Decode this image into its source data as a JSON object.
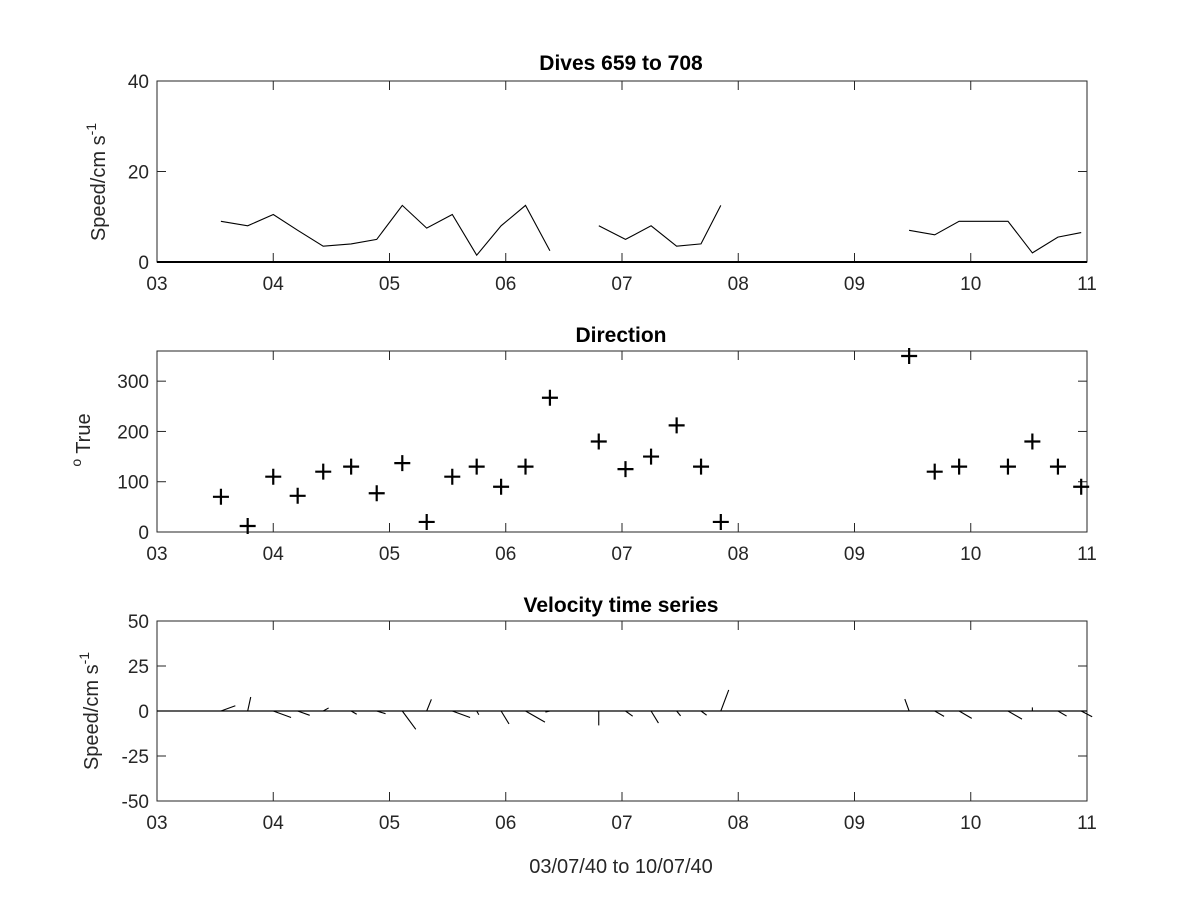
{
  "colors": {
    "ink": "#000000",
    "axis": "#262626",
    "background": "#ffffff"
  },
  "chart_data": [
    {
      "type": "line",
      "title": "Dives 659 to 708",
      "ylabel": {
        "main": "Speed/cm s",
        "sup": "-1"
      },
      "xlabel": "",
      "xlim": [
        3,
        11
      ],
      "ylim": [
        0,
        40
      ],
      "x_tick_values": [
        3,
        4,
        5,
        6,
        7,
        8,
        9,
        10,
        11
      ],
      "x_tick_labels": [
        "03",
        "04",
        "05",
        "06",
        "07",
        "08",
        "09",
        "10",
        "11"
      ],
      "y_tick_values": [
        0,
        20,
        40
      ],
      "y_tick_labels": [
        "0",
        "20",
        "40"
      ],
      "grid": false,
      "baseline": 0,
      "series": [
        {
          "x": [
            3.55,
            3.78,
            4.0,
            4.21,
            4.43,
            4.67,
            4.89,
            5.11,
            5.32,
            5.54,
            5.75,
            5.96,
            6.17,
            6.38
          ],
          "y": [
            9,
            8,
            10.5,
            7,
            3.5,
            4,
            5,
            12.5,
            7.5,
            10.5,
            1.5,
            8,
            12.5,
            2.5
          ]
        },
        {
          "x": [
            6.8,
            7.03,
            7.25,
            7.47,
            7.68,
            7.85
          ],
          "y": [
            8,
            5,
            8,
            3.5,
            4,
            12.5
          ]
        },
        {
          "x": [
            9.47,
            9.69,
            9.9,
            10.11,
            10.32,
            10.53,
            10.75,
            10.95
          ],
          "y": [
            7,
            6,
            9,
            9,
            9,
            2,
            5.5,
            6.5
          ]
        }
      ]
    },
    {
      "type": "scatter",
      "title": "Direction",
      "ylabel": {
        "main": "True",
        "sup": "o"
      },
      "xlabel": "",
      "xlim": [
        3,
        11
      ],
      "ylim": [
        0,
        360
      ],
      "x_tick_values": [
        3,
        4,
        5,
        6,
        7,
        8,
        9,
        10,
        11
      ],
      "x_tick_labels": [
        "03",
        "04",
        "05",
        "06",
        "07",
        "08",
        "09",
        "10",
        "11"
      ],
      "y_tick_values": [
        0,
        100,
        200,
        300
      ],
      "y_tick_labels": [
        "0",
        "100",
        "200",
        "300"
      ],
      "grid": false,
      "marker": "plus",
      "x": [
        3.55,
        3.78,
        4.0,
        4.21,
        4.43,
        4.67,
        4.89,
        5.11,
        5.32,
        5.54,
        5.75,
        5.96,
        6.17,
        6.38,
        6.8,
        7.03,
        7.25,
        7.47,
        7.68,
        7.85,
        9.47,
        9.69,
        9.9,
        10.32,
        10.53,
        10.75,
        10.95
      ],
      "y": [
        70,
        12,
        110,
        72,
        120,
        130,
        77,
        137,
        20,
        110,
        130,
        90,
        130,
        267,
        180,
        125,
        150,
        212,
        130,
        20,
        350,
        120,
        130,
        130,
        180,
        130,
        90
      ]
    },
    {
      "type": "line",
      "title": "Velocity time series",
      "ylabel": {
        "main": "Speed/cm s",
        "sup": "-1"
      },
      "xlabel": "03/07/40 to 10/07/40",
      "xlim": [
        3,
        11
      ],
      "ylim": [
        -50,
        50
      ],
      "x_tick_values": [
        3,
        4,
        5,
        6,
        7,
        8,
        9,
        10,
        11
      ],
      "x_tick_labels": [
        "03",
        "04",
        "05",
        "06",
        "07",
        "08",
        "09",
        "10",
        "11"
      ],
      "y_tick_values": [
        -50,
        -25,
        0,
        25,
        50
      ],
      "y_tick_labels": [
        "-50",
        "-25",
        "0",
        "25",
        "50"
      ],
      "grid": false,
      "baseline": 0,
      "stick_vectors": {
        "x": [
          3.55,
          3.78,
          4.0,
          4.21,
          4.43,
          4.67,
          4.89,
          5.11,
          5.32,
          5.54,
          5.75,
          5.96,
          6.17,
          6.38,
          6.8,
          7.03,
          7.25,
          7.47,
          7.68,
          7.85,
          9.47,
          9.69,
          9.9,
          10.32,
          10.53,
          10.75,
          10.95
        ],
        "u": [
          8,
          1.7,
          9.9,
          6.7,
          3,
          3.1,
          4.9,
          7.5,
          2.6,
          9.9,
          1.2,
          4.4,
          10.8,
          -2.5,
          0,
          4,
          4.1,
          2.2,
          3.1,
          4.4,
          -2.4,
          5.2,
          7,
          7.8,
          0,
          4.8,
          6.1
        ],
        "v": [
          2.9,
          7.8,
          -3.6,
          -2.4,
          1.7,
          -1.8,
          -1.5,
          -10.2,
          6.5,
          -3.6,
          -2.1,
          -7.2,
          -6.2,
          -0.6,
          -8,
          -2.9,
          -6.7,
          -2.7,
          -2.3,
          11.7,
          6.6,
          -3,
          -4.1,
          -4.5,
          2,
          -2.8,
          -3.2
        ]
      }
    }
  ]
}
